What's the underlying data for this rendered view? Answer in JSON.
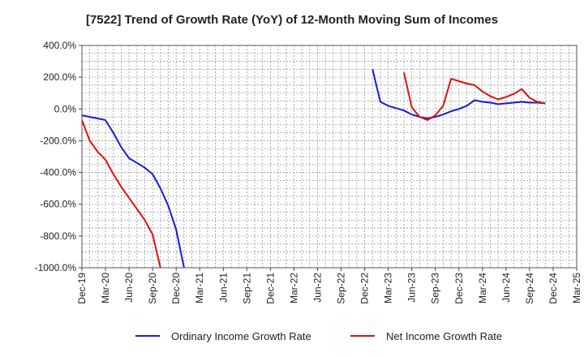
{
  "chart_data": {
    "type": "line",
    "title": "[7522]  Trend of Growth Rate (YoY) of 12-Month Moving Sum of Incomes",
    "xlabel": "",
    "ylabel": "",
    "ylim": [
      -1000,
      400
    ],
    "y_ticks": [
      400,
      200,
      0,
      -200,
      -400,
      -600,
      -800,
      -1000
    ],
    "y_tick_labels": [
      "400.0%",
      "200.0%",
      "0.0%",
      "-200.0%",
      "-400.0%",
      "-600.0%",
      "-800.0%",
      "-1000.0%"
    ],
    "x_tick_labels": [
      "Dec-19",
      "Mar-20",
      "Jun-20",
      "Sep-20",
      "Dec-20",
      "Mar-21",
      "Jun-21",
      "Sep-21",
      "Dec-21",
      "Mar-22",
      "Jun-22",
      "Sep-22",
      "Dec-22",
      "Mar-23",
      "Jun-23",
      "Sep-23",
      "Dec-23",
      "Mar-24",
      "Jun-24",
      "Sep-24",
      "Dec-24",
      "Mar-25"
    ],
    "grid": true,
    "legend_position": "bottom",
    "series": [
      {
        "name": "Ordinary Income Growth Rate",
        "color": "#1a1adb",
        "points": [
          [
            0,
            -40
          ],
          [
            1,
            -50
          ],
          [
            2,
            -60
          ],
          [
            3,
            -70
          ],
          [
            4,
            -150
          ],
          [
            5,
            -240
          ],
          [
            6,
            -310
          ],
          [
            7,
            -340
          ],
          [
            8,
            -370
          ],
          [
            9,
            -410
          ],
          [
            10,
            -500
          ],
          [
            11,
            -610
          ],
          [
            12,
            -760
          ],
          [
            13,
            -1000
          ],
          null,
          [
            37,
            250
          ],
          [
            38,
            45
          ],
          [
            39,
            20
          ],
          [
            40,
            5
          ],
          [
            41,
            -10
          ],
          [
            42,
            -35
          ],
          [
            43,
            -50
          ],
          [
            44,
            -60
          ],
          [
            45,
            -50
          ],
          [
            46,
            -35
          ],
          [
            47,
            -15
          ],
          [
            48,
            0
          ],
          [
            49,
            20
          ],
          [
            50,
            55
          ],
          [
            51,
            45
          ],
          [
            52,
            40
          ],
          [
            53,
            30
          ],
          [
            54,
            35
          ],
          [
            55,
            40
          ],
          [
            56,
            45
          ],
          [
            57,
            40
          ],
          [
            58,
            40
          ],
          [
            59,
            35
          ]
        ]
      },
      {
        "name": "Net Income Growth Rate",
        "color": "#dd1111",
        "points": [
          [
            0,
            -70
          ],
          [
            1,
            -200
          ],
          [
            2,
            -270
          ],
          [
            3,
            -320
          ],
          [
            4,
            -410
          ],
          [
            5,
            -490
          ],
          [
            6,
            -560
          ],
          [
            7,
            -630
          ],
          [
            8,
            -700
          ],
          [
            9,
            -790
          ],
          [
            10,
            -1000
          ],
          null,
          [
            41,
            230
          ],
          [
            42,
            10
          ],
          [
            43,
            -50
          ],
          [
            44,
            -70
          ],
          [
            45,
            -40
          ],
          [
            46,
            20
          ],
          [
            47,
            190
          ],
          [
            48,
            175
          ],
          [
            49,
            160
          ],
          [
            50,
            150
          ],
          [
            51,
            110
          ],
          [
            52,
            80
          ],
          [
            53,
            60
          ],
          [
            54,
            75
          ],
          [
            55,
            95
          ],
          [
            56,
            125
          ],
          [
            57,
            70
          ],
          [
            58,
            45
          ],
          [
            59,
            35
          ]
        ]
      }
    ]
  }
}
